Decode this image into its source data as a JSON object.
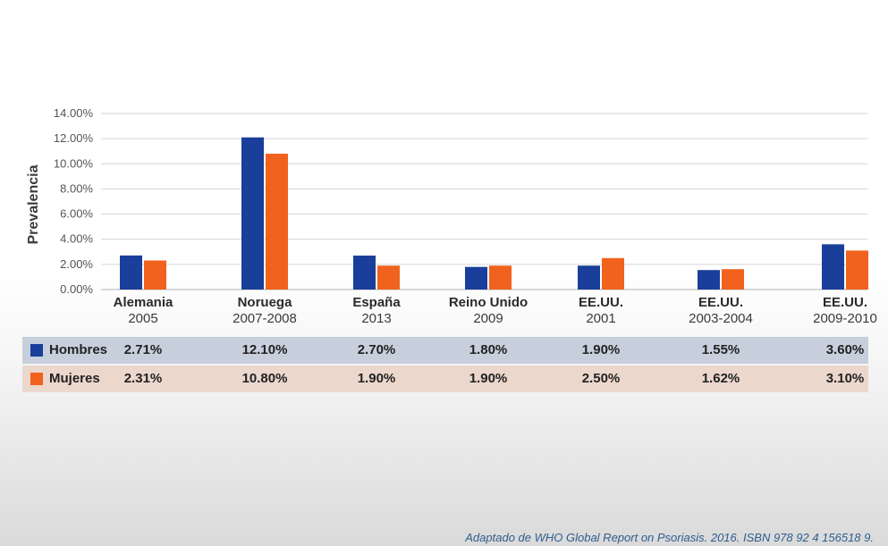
{
  "chart_data": {
    "type": "bar",
    "categories": [
      {
        "name": "Alemania",
        "year": "2005"
      },
      {
        "name": "Noruega",
        "year": "2007-2008"
      },
      {
        "name": "España",
        "year": "2013"
      },
      {
        "name": "Reino Unido",
        "year": "2009"
      },
      {
        "name": "EE.UU.",
        "year": "2001"
      },
      {
        "name": "EE.UU.",
        "year": "2003-2004"
      },
      {
        "name": "EE.UU.",
        "year": "2009-2010"
      }
    ],
    "series": [
      {
        "name": "Hombres",
        "color": "#1a3f9a",
        "values": [
          2.71,
          12.1,
          2.7,
          1.8,
          1.9,
          1.55,
          3.6
        ],
        "labels": [
          "2.71%",
          "12.10%",
          "2.70%",
          "1.80%",
          "1.90%",
          "1.55%",
          "3.60%"
        ]
      },
      {
        "name": "Mujeres",
        "color": "#f0621e",
        "values": [
          2.31,
          10.8,
          1.9,
          1.9,
          2.5,
          1.62,
          3.1
        ],
        "labels": [
          "2.31%",
          "10.80%",
          "1.90%",
          "1.90%",
          "2.50%",
          "1.62%",
          "3.10%"
        ]
      }
    ],
    "ylabel": "Prevalencia",
    "ylim": [
      0,
      14
    ],
    "yticks": [
      "0.00%",
      "2.00%",
      "4.00%",
      "6.00%",
      "8.00%",
      "10.00%",
      "12.00%",
      "14.00%"
    ],
    "grid": true,
    "legend": "table-below"
  },
  "source": "Adaptado de WHO Global Report on Psoriasis. 2016. ISBN 978 92 4 156518 9."
}
